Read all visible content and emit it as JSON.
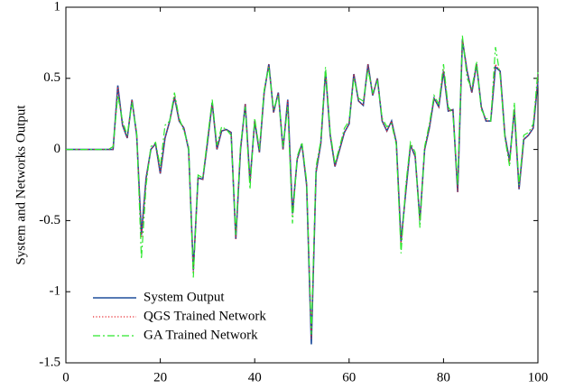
{
  "chart_data": {
    "type": "line",
    "ylabel": "System and Networks Output",
    "x": [
      0,
      1,
      2,
      3,
      4,
      5,
      6,
      7,
      8,
      9,
      10,
      11,
      12,
      13,
      14,
      15,
      16,
      17,
      18,
      19,
      20,
      21,
      22,
      23,
      24,
      25,
      26,
      27,
      28,
      29,
      30,
      31,
      32,
      33,
      34,
      35,
      36,
      37,
      38,
      39,
      40,
      41,
      42,
      43,
      44,
      45,
      46,
      47,
      48,
      49,
      50,
      51,
      52,
      53,
      54,
      55,
      56,
      57,
      58,
      59,
      60,
      61,
      62,
      63,
      64,
      65,
      66,
      67,
      68,
      69,
      70,
      71,
      72,
      73,
      74,
      75,
      76,
      77,
      78,
      79,
      80,
      81,
      82,
      83,
      84,
      85,
      86,
      87,
      88,
      89,
      90,
      91,
      92,
      93,
      94,
      95,
      96,
      97,
      98,
      99,
      100
    ],
    "series": [
      {
        "name": "System Output",
        "color": "#1f4e9c",
        "dash": "solid",
        "values": [
          0,
          0,
          0,
          0,
          0,
          0,
          0,
          0,
          0,
          0,
          0,
          0.45,
          0.17,
          0.08,
          0.35,
          0.1,
          -0.6,
          -0.2,
          0,
          0.04,
          -0.17,
          0.08,
          0.2,
          0.37,
          0.2,
          0.15,
          0,
          -0.85,
          -0.2,
          -0.21,
          0.05,
          0.33,
          0,
          0.13,
          0.14,
          0.12,
          -0.63,
          0,
          0.32,
          -0.23,
          0.2,
          -0.02,
          0.4,
          0.6,
          0.26,
          0.4,
          0,
          0.35,
          -0.45,
          -0.07,
          0.04,
          -0.25,
          -1.37,
          -0.16,
          0.04,
          0.55,
          0.1,
          -0.12,
          0,
          0.12,
          0.18,
          0.53,
          0.34,
          0.31,
          0.6,
          0.38,
          0.5,
          0.2,
          0.13,
          0.2,
          0.05,
          -0.65,
          -0.3,
          0.03,
          -0.05,
          -0.5,
          0,
          0.15,
          0.36,
          0.3,
          0.55,
          0.27,
          0.28,
          -0.3,
          0.77,
          0.55,
          0.4,
          0.6,
          0.3,
          0.2,
          0.2,
          0.58,
          0.55,
          0.1,
          -0.08,
          0.28,
          -0.28,
          0.07,
          0.1,
          0.15,
          0.48
        ]
      },
      {
        "name": "QGS Trained Network",
        "color": "#e8242a",
        "dash": "dotted",
        "values": [
          0,
          0,
          0,
          0,
          0,
          0,
          0,
          0,
          0,
          0,
          0,
          0.44,
          0.17,
          0.08,
          0.35,
          0.1,
          -0.62,
          -0.2,
          0,
          0.04,
          -0.17,
          0.08,
          0.2,
          0.37,
          0.2,
          0.15,
          0,
          -0.87,
          -0.2,
          -0.21,
          0.05,
          0.33,
          0,
          0.13,
          0.14,
          0.12,
          -0.63,
          0,
          0.32,
          -0.23,
          0.2,
          -0.02,
          0.4,
          0.6,
          0.26,
          0.4,
          0,
          0.35,
          -0.46,
          -0.07,
          0.04,
          -0.25,
          -1.33,
          -0.16,
          0.04,
          0.55,
          0.1,
          -0.12,
          0,
          0.12,
          0.18,
          0.53,
          0.34,
          0.31,
          0.6,
          0.38,
          0.5,
          0.2,
          0.13,
          0.2,
          0.05,
          -0.66,
          -0.3,
          0.03,
          -0.05,
          -0.5,
          0,
          0.15,
          0.36,
          0.3,
          0.56,
          0.27,
          0.28,
          -0.3,
          0.78,
          0.55,
          0.4,
          0.6,
          0.3,
          0.2,
          0.2,
          0.6,
          0.55,
          0.1,
          -0.09,
          0.28,
          -0.28,
          0.07,
          0.1,
          0.15,
          0.5
        ]
      },
      {
        "name": "GA Trained Network",
        "color": "#2ee82e",
        "dash": "dashdot",
        "values": [
          0,
          0,
          0,
          0,
          0,
          0,
          0,
          0,
          0,
          0,
          0.02,
          0.38,
          0.2,
          0.1,
          0.33,
          0.12,
          -0.77,
          -0.25,
          0.02,
          0.05,
          -0.12,
          0.17,
          0.2,
          0.4,
          0.22,
          0.13,
          0.02,
          -0.9,
          -0.18,
          -0.2,
          0.08,
          0.35,
          0.03,
          0.16,
          0.14,
          0.1,
          -0.6,
          0.03,
          0.3,
          -0.28,
          0.22,
          0.0,
          0.42,
          0.58,
          0.28,
          0.38,
          0.02,
          0.3,
          -0.52,
          -0.05,
          0.05,
          -0.22,
          -1.3,
          -0.12,
          0.06,
          0.58,
          0.12,
          -0.1,
          0.02,
          0.15,
          0.2,
          0.5,
          0.36,
          0.34,
          0.56,
          0.4,
          0.48,
          0.22,
          0.16,
          0.18,
          0.03,
          -0.73,
          -0.25,
          0.05,
          -0.02,
          -0.55,
          0.02,
          0.18,
          0.38,
          0.32,
          0.6,
          0.3,
          0.25,
          -0.25,
          0.8,
          0.5,
          0.43,
          0.62,
          0.28,
          0.22,
          0.2,
          0.72,
          0.52,
          0.08,
          -0.12,
          0.33,
          -0.25,
          0.1,
          0.12,
          0.18,
          0.55
        ]
      }
    ],
    "xlim": [
      0,
      100
    ],
    "xticks": [
      0,
      20,
      40,
      60,
      80,
      100
    ],
    "ylim": [
      -1.5,
      1
    ],
    "yticks": [
      -1.5,
      -1,
      -0.5,
      0,
      0.5,
      1
    ],
    "legend": "lower left"
  }
}
